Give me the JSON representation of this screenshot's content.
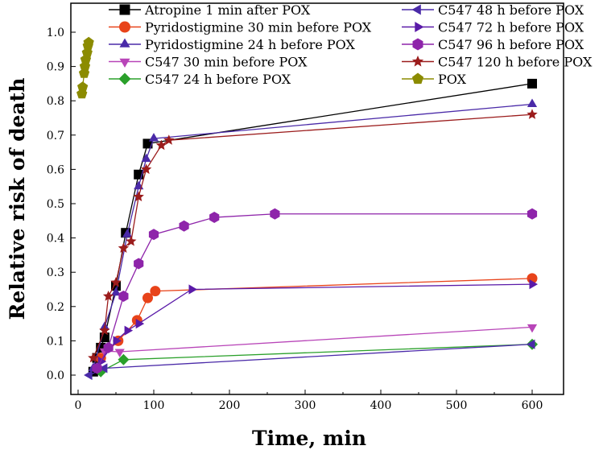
{
  "chart_data": {
    "type": "line",
    "xlabel": "Time, min",
    "ylabel": "Relative risk of death",
    "xlim": [
      -10,
      650
    ],
    "ylim": [
      -0.05,
      1.0
    ],
    "xticks": [
      0,
      100,
      200,
      300,
      400,
      500,
      600
    ],
    "yticks": [
      "0.0",
      "0.1",
      "0.2",
      "0.3",
      "0.4",
      "0.5",
      "0.6",
      "0.7",
      "0.8",
      "0.9",
      "1.0"
    ],
    "legend_position": "top",
    "series": [
      {
        "name": "Atropine 1 min after POX",
        "marker": "square",
        "color": "#000000",
        "x": [
          20,
          25,
          30,
          35,
          50,
          63,
          80,
          92,
          600
        ],
        "y": [
          0.01,
          0.05,
          0.08,
          0.11,
          0.26,
          0.415,
          0.585,
          0.675,
          0.85
        ]
      },
      {
        "name": "Pyridostigmine 30 min before POX",
        "marker": "circle",
        "color": "#e8431a",
        "x": [
          30,
          53,
          78,
          92,
          102,
          600
        ],
        "y": [
          0.05,
          0.1,
          0.16,
          0.225,
          0.245,
          0.282
        ]
      },
      {
        "name": "Pyridostigmine 24 h before POX",
        "marker": "triangle-up",
        "color": "#4a2aa8",
        "x": [
          20,
          35,
          50,
          65,
          80,
          90,
          100,
          600
        ],
        "y": [
          0.02,
          0.14,
          0.24,
          0.41,
          0.55,
          0.63,
          0.69,
          0.79
        ]
      },
      {
        "name": "C547 30 min before POX",
        "marker": "triangle-down",
        "color": "#b845b8",
        "x": [
          35,
          55,
          600
        ],
        "y": [
          0.07,
          0.068,
          0.14
        ]
      },
      {
        "name": "C547 24 h before POX",
        "marker": "diamond",
        "color": "#2aa02a",
        "x": [
          30,
          60,
          600
        ],
        "y": [
          0.01,
          0.045,
          0.09
        ]
      },
      {
        "name": "C547 48 h before POX",
        "marker": "triangle-left",
        "color": "#4a2aa8",
        "x": [
          15,
          35,
          600
        ],
        "y": [
          0.0,
          0.02,
          0.09
        ]
      },
      {
        "name": "C547 72 h before POX",
        "marker": "triangle-right",
        "color": "#5a1aa8",
        "x": [
          30,
          50,
          65,
          80,
          150,
          600
        ],
        "y": [
          0.04,
          0.1,
          0.13,
          0.15,
          0.25,
          0.265
        ]
      },
      {
        "name": "C547 96 h before POX",
        "marker": "hexagon",
        "color": "#8e24aa",
        "x": [
          25,
          40,
          60,
          80,
          100,
          140,
          180,
          260,
          600
        ],
        "y": [
          0.02,
          0.08,
          0.23,
          0.325,
          0.41,
          0.435,
          0.46,
          0.47,
          0.47
        ]
      },
      {
        "name": "C547 120 h before POX",
        "marker": "star",
        "color": "#9b1c1c",
        "x": [
          20,
          35,
          40,
          50,
          60,
          70,
          80,
          90,
          110,
          120,
          600
        ],
        "y": [
          0.05,
          0.13,
          0.23,
          0.27,
          0.37,
          0.39,
          0.52,
          0.6,
          0.67,
          0.685,
          0.76
        ]
      },
      {
        "name": "POX",
        "marker": "pentagon",
        "color": "#8b8b00",
        "x": [
          5,
          6,
          8,
          9,
          10,
          12,
          13,
          14
        ],
        "y": [
          0.82,
          0.84,
          0.88,
          0.9,
          0.92,
          0.94,
          0.96,
          0.97
        ]
      }
    ]
  }
}
